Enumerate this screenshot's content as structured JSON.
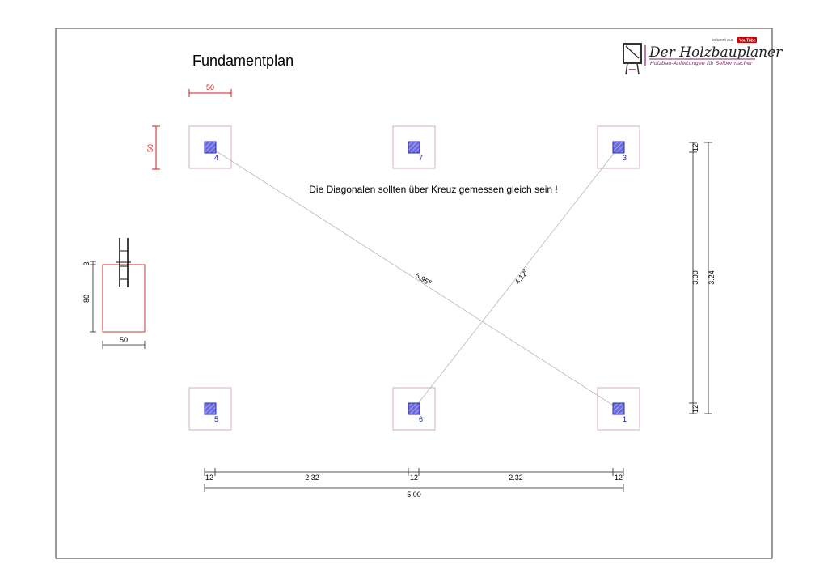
{
  "title": "Fundamentplan",
  "note": "Die Diagonalen sollten über Kreuz gemessen gleich sein !",
  "logo": {
    "name": "Der Holzbauplaner",
    "tagline": "Holzbau-Anleitungen für Selbermacher",
    "known_from": "bekannt aus",
    "youtube": "YouTube",
    "colors": {
      "accent": "#7a2a66",
      "youtube": "#cc0000"
    }
  },
  "foundations": [
    {
      "label": "4"
    },
    {
      "label": "7"
    },
    {
      "label": "3"
    },
    {
      "label": "5"
    },
    {
      "label": "6"
    },
    {
      "label": "1"
    }
  ],
  "diagonals": {
    "long": "5.95",
    "long_sup": "8",
    "short": "4.12",
    "short_sup": "8"
  },
  "dimensions": {
    "footing_width": "50",
    "footing_depth": "50",
    "right_inner_top": "12",
    "right_middle": "3.00",
    "right_inner_bottom": "12",
    "right_total": "3.24",
    "bottom_first": "12",
    "bottom_span_1": "2.32",
    "bottom_mid": "12",
    "bottom_span_2": "2.32",
    "bottom_last": "12",
    "bottom_total": "5.00"
  },
  "section_detail": {
    "cover": "3",
    "height": "80",
    "width": "50"
  },
  "colors": {
    "footing_fill": "#6b6bdd",
    "footing_edge": "#2a2ab0",
    "red": "#cc2222",
    "diagonal": "#b8b8b8"
  }
}
